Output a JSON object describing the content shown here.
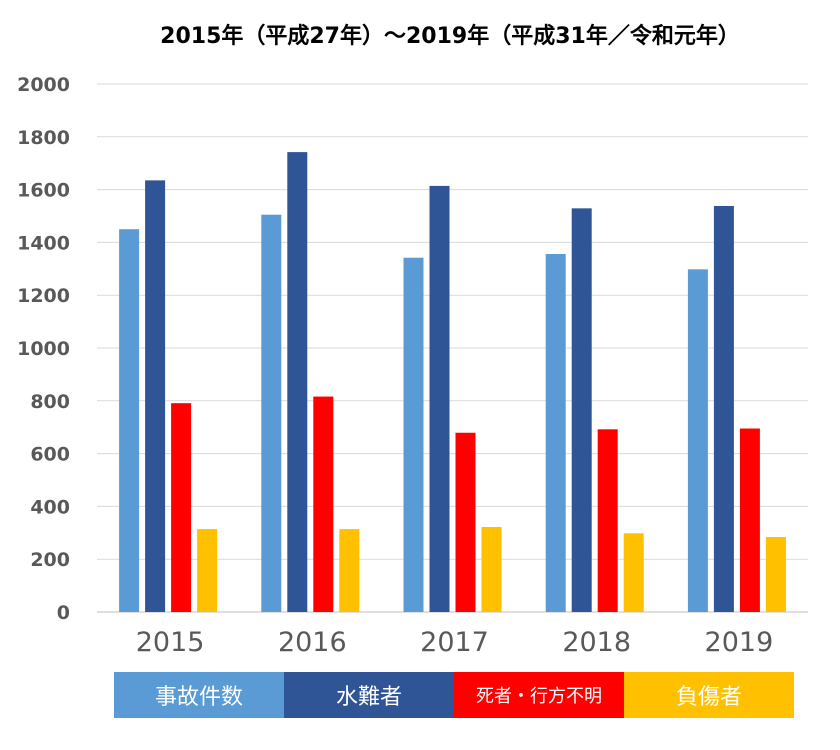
{
  "chart_data": {
    "type": "bar",
    "title": "2015年（平成27年）～2019年（平成31年／令和元年）",
    "categories": [
      "2015",
      "2016",
      "2017",
      "2018",
      "2019"
    ],
    "series": [
      {
        "name": "事故件数",
        "color": "#5B9BD5",
        "values": [
          1450,
          1505,
          1342,
          1356,
          1298
        ]
      },
      {
        "name": "水難者",
        "color": "#2F5597",
        "values": [
          1635,
          1742,
          1614,
          1529,
          1538
        ]
      },
      {
        "name": "死者・行方不明",
        "color": "#FF0000",
        "values": [
          791,
          816,
          679,
          692,
          695
        ]
      },
      {
        "name": "負傷者",
        "color": "#FFC000",
        "values": [
          314,
          314,
          322,
          298,
          284
        ]
      }
    ],
    "ylim": [
      0,
      2000
    ],
    "yticks": [
      0,
      200,
      400,
      600,
      800,
      1000,
      1200,
      1400,
      1600,
      1800,
      2000
    ],
    "grid": true,
    "legend_position": "bottom"
  }
}
